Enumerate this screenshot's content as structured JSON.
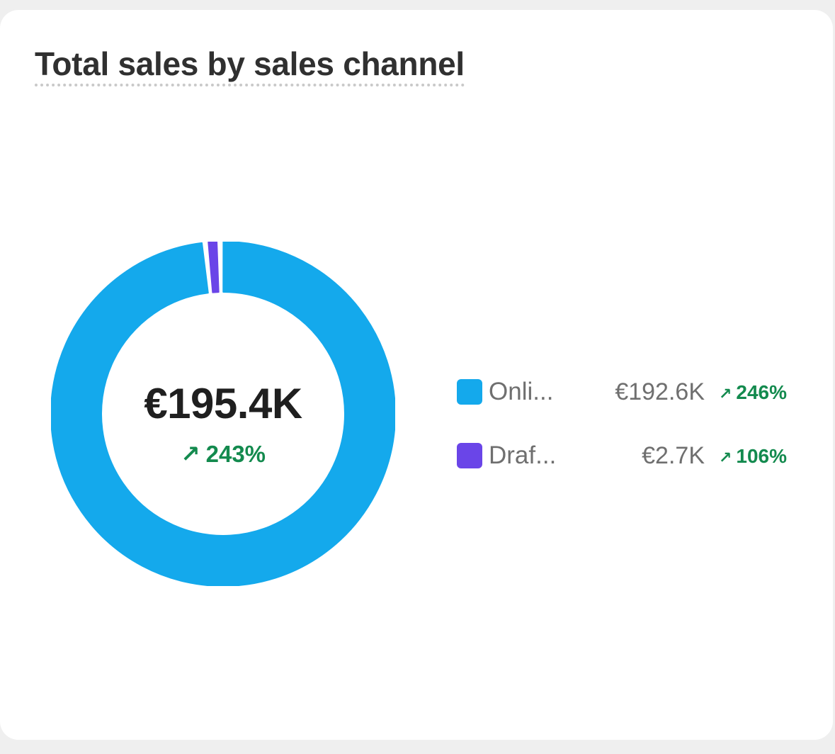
{
  "card": {
    "title": "Total sales by sales channel"
  },
  "summary": {
    "total": "€195.4K",
    "change": "243%",
    "arrow": "↗"
  },
  "legend": [
    {
      "label": "Onli...",
      "value": "€192.6K",
      "change": "246%",
      "arrow": "↗",
      "color": "#14a9ec"
    },
    {
      "label": "Draf...",
      "value": "€2.7K",
      "change": "106%",
      "arrow": "↗",
      "color": "#6a45e8"
    }
  ],
  "colors": {
    "positive": "#138a4e",
    "card_background": "#ffffff",
    "page_background": "#efefef"
  },
  "chart_data": {
    "type": "pie",
    "categories": [
      "Onli...",
      "Draf..."
    ],
    "values": [
      192.6,
      2.7
    ],
    "unit": "€K",
    "colors": [
      "#14a9ec",
      "#6a45e8"
    ]
  }
}
